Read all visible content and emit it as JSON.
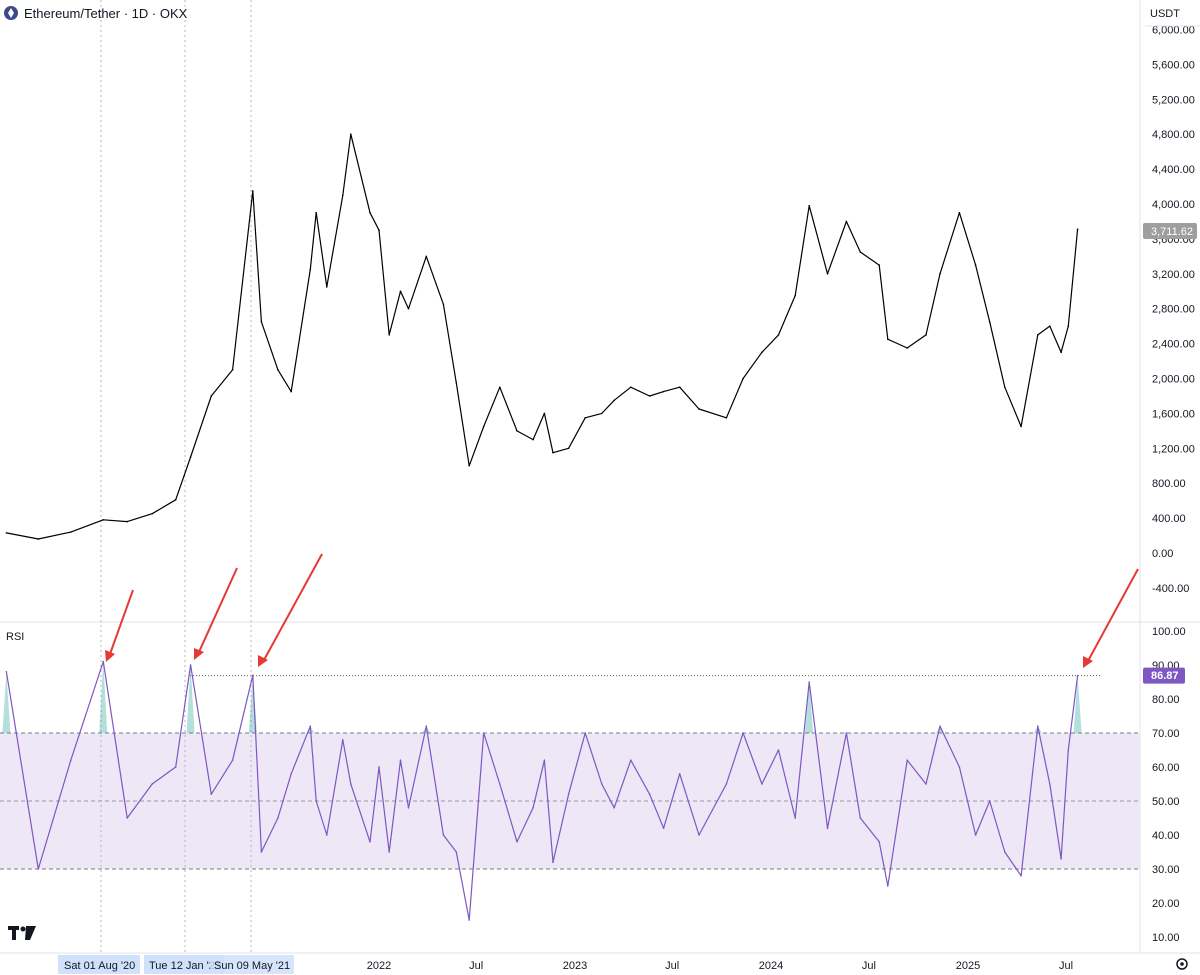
{
  "header": {
    "title": "Ethereum/Tether · 1D · OKX",
    "currency": "USDT",
    "current_price_label": "3,711.62"
  },
  "rsi_panel": {
    "label": "RSI",
    "current_value_label": "86.87"
  },
  "x_axis": {
    "labels": [
      "2022",
      "Jul",
      "2023",
      "Jul",
      "2024",
      "Jul",
      "2025",
      "Jul"
    ],
    "crosshair_dates": [
      "Sat 01 Aug '20",
      "Tue 12 Jan '21",
      "Sun 09 May '21"
    ]
  },
  "colors": {
    "price_line": "#000000",
    "rsi_line": "#7e57c2",
    "rsi_band": "#ede7f6",
    "overbought_fill": "#26a69a",
    "arrow": "#e53935",
    "value_tag": "#7e57c2",
    "price_tag": "#9e9e9e"
  },
  "chart_data": [
    {
      "type": "line",
      "title": "Ethereum/Tether · 1D · OKX",
      "ylabel": "USDT",
      "yticks": [
        "6,000.00",
        "5,600.00",
        "5,200.00",
        "4,800.00",
        "4,400.00",
        "4,000.00",
        "3,600.00",
        "3,200.00",
        "2,800.00",
        "2,400.00",
        "2,000.00",
        "1,600.00",
        "1,200.00",
        "800.00",
        "400.00",
        "0.00",
        "-400.00"
      ],
      "ylim": [
        -400,
        6000
      ],
      "series": [
        {
          "x": [
            "2020-02-01",
            "2020-04-01",
            "2020-06-01",
            "2020-08-01",
            "2020-09-15",
            "2020-11-01",
            "2020-12-15",
            "2021-01-12",
            "2021-02-20",
            "2021-04-01",
            "2021-05-09",
            "2021-05-25",
            "2021-06-25",
            "2021-07-20",
            "2021-08-25",
            "2021-09-05",
            "2021-09-25",
            "2021-10-25",
            "2021-11-09",
            "2021-12-15",
            "2022-01-01",
            "2022-01-20",
            "2022-02-10",
            "2022-02-25",
            "2022-03-30",
            "2022-05-01",
            "2022-05-25",
            "2022-06-18",
            "2022-07-15",
            "2022-08-14",
            "2022-09-15",
            "2022-10-15",
            "2022-11-05",
            "2022-11-21",
            "2022-12-20",
            "2023-01-20",
            "2023-02-20",
            "2023-03-15",
            "2023-04-15",
            "2023-05-20",
            "2023-06-15",
            "2023-07-15",
            "2023-08-20",
            "2023-10-10",
            "2023-11-10",
            "2023-12-15",
            "2024-01-15",
            "2024-02-15",
            "2024-03-12",
            "2024-04-15",
            "2024-05-20",
            "2024-06-15",
            "2024-07-20",
            "2024-08-05",
            "2024-09-10",
            "2024-10-15",
            "2024-11-10",
            "2024-12-16",
            "2025-01-15",
            "2025-02-10",
            "2025-03-10",
            "2025-04-09",
            "2025-05-10",
            "2025-06-01",
            "2025-06-22",
            "2025-07-05",
            "2025-07-21"
          ],
          "y": [
            230,
            160,
            240,
            380,
            360,
            450,
            610,
            1100,
            1800,
            2100,
            4150,
            2650,
            2100,
            1850,
            3250,
            3900,
            3050,
            4100,
            4800,
            3900,
            3700,
            2500,
            3000,
            2800,
            3400,
            2850,
            1950,
            1000,
            1450,
            1900,
            1400,
            1300,
            1600,
            1150,
            1200,
            1550,
            1600,
            1750,
            1900,
            1800,
            1850,
            1900,
            1650,
            1550,
            2000,
            2300,
            2500,
            2950,
            3980,
            3200,
            3800,
            3450,
            3300,
            2450,
            2350,
            2500,
            3200,
            3900,
            3300,
            2650,
            1900,
            1450,
            2500,
            2600,
            2300,
            2600,
            3711.62
          ]
        }
      ]
    },
    {
      "type": "line",
      "title": "RSI",
      "yticks": [
        "100.00",
        "90.00",
        "80.00",
        "70.00",
        "60.00",
        "50.00",
        "40.00",
        "30.00",
        "20.00",
        "10.00"
      ],
      "ylim": [
        10,
        100
      ],
      "bands": {
        "upper": 70,
        "middle": 50,
        "lower": 30
      },
      "reference_level": 86.87,
      "series": [
        {
          "x": [
            "2020-02-01",
            "2020-04-01",
            "2020-06-01",
            "2020-08-01",
            "2020-09-15",
            "2020-11-01",
            "2020-12-15",
            "2021-01-12",
            "2021-02-20",
            "2021-04-01",
            "2021-05-09",
            "2021-05-25",
            "2021-06-25",
            "2021-07-20",
            "2021-08-25",
            "2021-09-05",
            "2021-09-25",
            "2021-10-25",
            "2021-11-09",
            "2021-12-15",
            "2022-01-01",
            "2022-01-20",
            "2022-02-10",
            "2022-02-25",
            "2022-03-30",
            "2022-05-01",
            "2022-05-25",
            "2022-06-18",
            "2022-07-15",
            "2022-08-14",
            "2022-09-15",
            "2022-10-15",
            "2022-11-05",
            "2022-11-21",
            "2022-12-20",
            "2023-01-20",
            "2023-02-20",
            "2023-03-15",
            "2023-04-15",
            "2023-05-20",
            "2023-06-15",
            "2023-07-15",
            "2023-08-20",
            "2023-10-10",
            "2023-11-10",
            "2023-12-15",
            "2024-01-15",
            "2024-02-15",
            "2024-03-12",
            "2024-04-15",
            "2024-05-20",
            "2024-06-15",
            "2024-07-20",
            "2024-08-05",
            "2024-09-10",
            "2024-10-15",
            "2024-11-10",
            "2024-12-16",
            "2025-01-15",
            "2025-02-10",
            "2025-03-10",
            "2025-04-09",
            "2025-05-10",
            "2025-06-01",
            "2025-06-22",
            "2025-07-05",
            "2025-07-21"
          ],
          "y": [
            88,
            30,
            62,
            91,
            45,
            55,
            60,
            90,
            52,
            62,
            87,
            35,
            45,
            58,
            72,
            50,
            40,
            68,
            55,
            38,
            60,
            35,
            62,
            48,
            72,
            40,
            35,
            15,
            70,
            55,
            38,
            48,
            62,
            32,
            52,
            70,
            55,
            48,
            62,
            52,
            42,
            58,
            40,
            55,
            70,
            55,
            65,
            45,
            85,
            42,
            70,
            45,
            38,
            25,
            62,
            55,
            72,
            60,
            40,
            50,
            35,
            28,
            72,
            55,
            33,
            65,
            86.87
          ]
        }
      ]
    }
  ]
}
